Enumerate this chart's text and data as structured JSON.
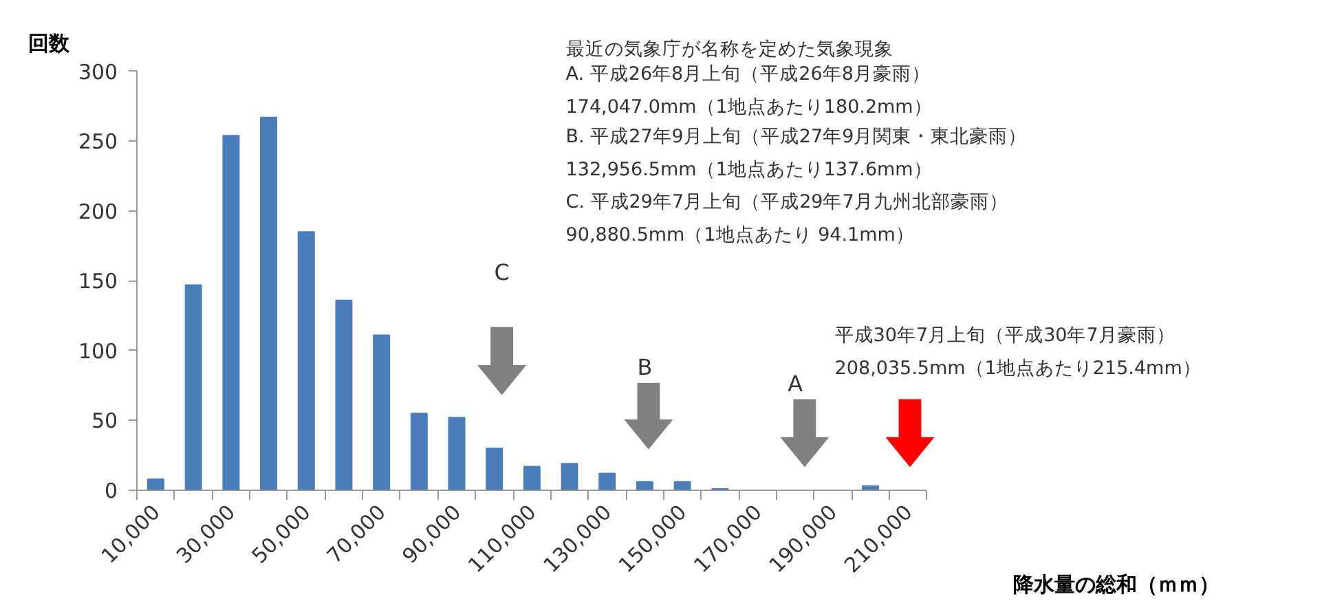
{
  "chart_data": {
    "type": "bar",
    "xlabel": "降水量の総和（ｍｍ）",
    "ylabel": "回数",
    "categories": [
      "10,000",
      null,
      "30,000",
      null,
      "50,000",
      null,
      "70,000",
      null,
      "90,000",
      null,
      "110,000",
      null,
      "130,000",
      null,
      "150,000",
      null,
      "170,000",
      null,
      "190,000",
      null,
      "210,000"
    ],
    "values": [
      8,
      147,
      254,
      267,
      185,
      136,
      111,
      55,
      52,
      30,
      17,
      19,
      12,
      6,
      6,
      1,
      0,
      0,
      0,
      3,
      0
    ],
    "color": "#4a7ebb",
    "ylim": [
      0,
      300
    ],
    "yticks": [
      0,
      50,
      100,
      150,
      200,
      250,
      300
    ],
    "grid": false,
    "annotations": [
      "最近の気象庁が名称を定めた気象現象",
      "A. 平成26年8月上旬（平成26年8月豪雨）\n    174,047.0mm（1地点あたり180.2mm）",
      "B. 平成27年9月上旬（平成27年9月関東・東北豪雨）\n    132,956.5mm（1地点あたり137.6mm）",
      "C. 平成29年7月上旬（平成29年7月九州北部豪雨）\n     90,880.5mm（1地点あたり 94.1mm）",
      "平成30年7月上旬（平成30年7月豪雨）\n  208,035.5mm（1地点あたり215.4mm）",
      "C",
      "B",
      "A"
    ]
  }
}
